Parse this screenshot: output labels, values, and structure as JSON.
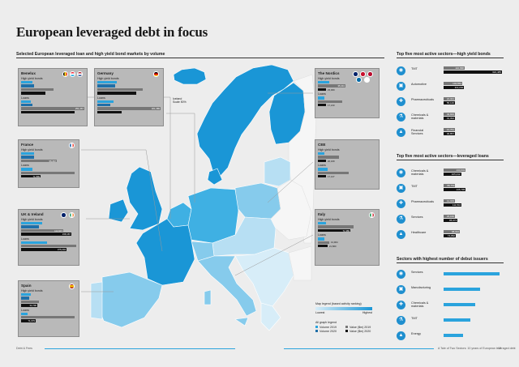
{
  "title": "European leveraged debt in focus",
  "map_section_title": "Selected European leveraged loan and high yield bond markets by volume",
  "side": {
    "hy_title": "Top five most active sectors—high yield bonds",
    "hy": [
      {
        "label": "TMT",
        "v1": "116,588",
        "v2": "322,485",
        "p1": 0.36,
        "p2": 1.0
      },
      {
        "label": "Automotive",
        "v1": "104,553",
        "v2": "113,202",
        "p1": 0.32,
        "p2": 0.35
      },
      {
        "label": "Pharmaceuticals",
        "v1": "21,321",
        "v2": "55,140",
        "p1": 0.07,
        "p2": 0.17
      },
      {
        "label": "Chemicals & materials",
        "v1": "43,846",
        "v2": "41,094",
        "p1": 0.14,
        "p2": 0.13
      },
      {
        "label": "Financial Services",
        "v1": "12,761",
        "v2": "40,857",
        "p1": 0.04,
        "p2": 0.13
      }
    ],
    "ll_title": "Top five most active sectors—leveraged loans",
    "ll": [
      {
        "label": "Chemicals & materials",
        "v1": "134,631",
        "v2": "105,212",
        "p1": 0.38,
        "p2": 0.3
      },
      {
        "label": "TMT",
        "v1": "68,759",
        "v2": "135,795",
        "p1": 0.2,
        "p2": 0.38
      },
      {
        "label": "Pharmaceuticals",
        "v1": "11,029",
        "v2": "111,510",
        "p1": 0.03,
        "p2": 0.31
      },
      {
        "label": "Services",
        "v1": "23,160",
        "v2": "85,371",
        "p1": 0.07,
        "p2": 0.24
      },
      {
        "label": "Healthcare",
        "v1": "98,010",
        "v2": "74,862",
        "p1": 0.28,
        "p2": 0.21
      }
    ],
    "debut_title": "Sectors with highest number of debut issuers",
    "debut": [
      {
        "label": "Services",
        "p": 0.96
      },
      {
        "label": "Manufacturing",
        "p": 0.62
      },
      {
        "label": "Chemicals & materials",
        "p": 0.54
      },
      {
        "label": "TMT",
        "p": 0.46
      },
      {
        "label": "Energy",
        "p": 0.34
      }
    ]
  },
  "panels": [
    {
      "name": "Benelux",
      "hy": [
        "",
        ""
      ],
      "ll": [
        "",
        "251,467"
      ]
    },
    {
      "name": "Germany",
      "hy": [
        "",
        ""
      ],
      "ll": [
        "",
        "321,389"
      ]
    },
    {
      "name": "France",
      "hy": [
        "",
        "55,267"
      ],
      "ll": [
        "",
        "71,899"
      ]
    },
    {
      "name": "UK & Ireland",
      "hy": [
        "114,947",
        "158,167"
      ],
      "ll": [
        "",
        "375,204"
      ]
    },
    {
      "name": "Spain",
      "hy": [
        "",
        "34,700"
      ],
      "ll": [
        "",
        "71,679"
      ]
    },
    {
      "name": "The Nordics",
      "hy": [
        "35,441",
        "23,009"
      ],
      "ll": [
        "",
        "17,210"
      ]
    },
    {
      "name": "CEE",
      "hy": [
        "",
        "20,169"
      ],
      "ll": [
        "",
        "17,127"
      ]
    },
    {
      "name": "Italy",
      "hy": [
        "",
        "71,989"
      ],
      "ll": [
        "13,904",
        "21,860"
      ]
    }
  ],
  "iceland_note": "Iceland\nScale 50%",
  "legend": {
    "scale_title": "Map legend (based activity ranking)",
    "lowest": "Lowest",
    "highest": "Highest",
    "graph_title": "All graph legend",
    "items": [
      "Volume 2019",
      "Volume 2020",
      "Value ($m) 2019",
      "Value ($m) 2020"
    ]
  },
  "labels": {
    "hy": "High yield bonds",
    "ll": "Loans"
  },
  "colors": {
    "darkest": "#1a96d6",
    "dark": "#3fb0e3",
    "mid": "#86cbec",
    "light": "#b7dff3",
    "lightest": "#d7edf8",
    "land": "#ffffff"
  },
  "footer_left": "Debt & Fees",
  "footer_right": "A Tale of Two Sectors: 10 years of European leveraged debt",
  "page_number": "15"
}
